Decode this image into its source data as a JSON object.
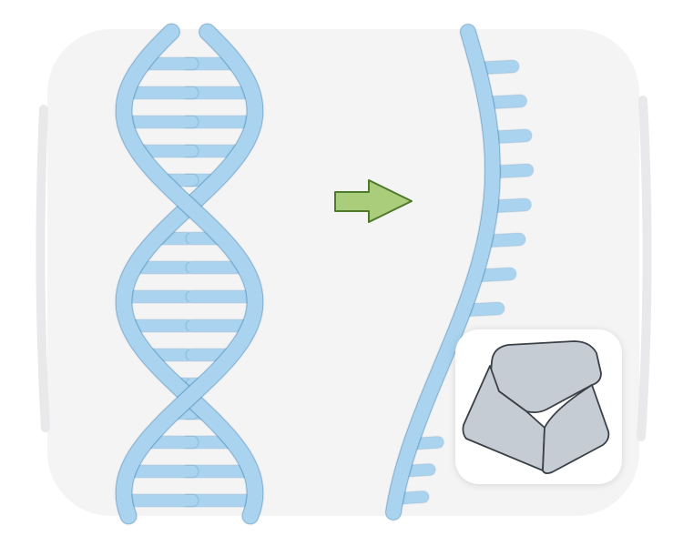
{
  "colors": {
    "page_background": "#ffffff",
    "panel_background": "#f4f4f5",
    "dna_fill": "#a9d3ee",
    "dna_outline": "#3a7fb0",
    "arrow_fill": "#a9cd7a",
    "arrow_outline": "#4f7a2c",
    "key_fill": "#c5ccd4",
    "key_outline": "#3b4046"
  },
  "diagram": {
    "left": "double-stranded-dna-helix",
    "arrow": "right-arrow",
    "right": "single-stranded-dna",
    "badge": "keyboard-key-icon"
  }
}
